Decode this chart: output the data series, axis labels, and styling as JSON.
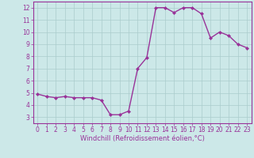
{
  "x": [
    0,
    1,
    2,
    3,
    4,
    5,
    6,
    7,
    8,
    9,
    10,
    11,
    12,
    13,
    14,
    15,
    16,
    17,
    18,
    19,
    20,
    21,
    22,
    23
  ],
  "y": [
    4.9,
    4.7,
    4.6,
    4.7,
    4.6,
    4.6,
    4.6,
    4.4,
    3.2,
    3.2,
    3.5,
    7.0,
    7.9,
    12.0,
    12.0,
    11.6,
    12.0,
    12.0,
    11.5,
    9.5,
    10.0,
    9.7,
    9.0,
    8.7
  ],
  "line_color": "#993399",
  "marker": "D",
  "marker_size": 2,
  "bg_color": "#cce8e8",
  "grid_color": "#aacccc",
  "xlabel": "Windchill (Refroidissement éolien,°C)",
  "xlim": [
    -0.5,
    23.5
  ],
  "ylim": [
    2.5,
    12.5
  ],
  "yticks": [
    3,
    4,
    5,
    6,
    7,
    8,
    9,
    10,
    11,
    12
  ],
  "xticks": [
    0,
    1,
    2,
    3,
    4,
    5,
    6,
    7,
    8,
    9,
    10,
    11,
    12,
    13,
    14,
    15,
    16,
    17,
    18,
    19,
    20,
    21,
    22,
    23
  ],
  "tick_label_fontsize": 5.5,
  "xlabel_fontsize": 6.0,
  "spine_color": "#993399",
  "line_width": 1.0
}
